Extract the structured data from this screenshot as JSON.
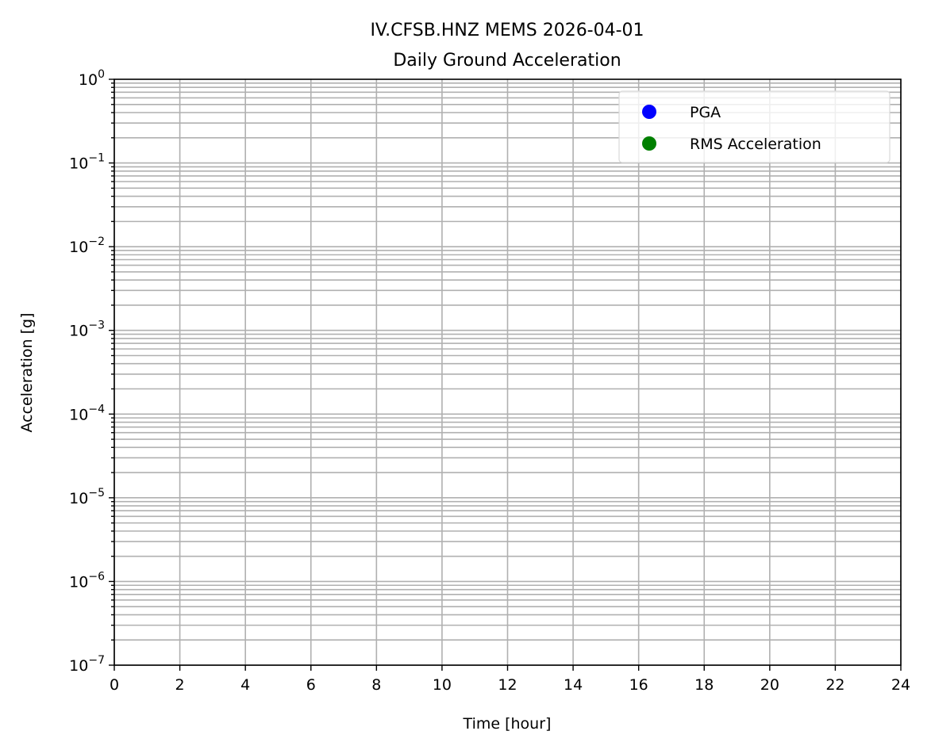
{
  "chart_data": {
    "type": "scatter",
    "title": "IV.CFSB.HNZ MEMS 2026-04-01",
    "subtitle": "Daily Ground Acceleration",
    "xlabel": "Time [hour]",
    "ylabel": "Acceleration [g]",
    "xlim": [
      0,
      24
    ],
    "ylim": [
      1e-07,
      1
    ],
    "yscale": "log",
    "grid": "major and minor",
    "x_ticks": [
      "0",
      "2",
      "4",
      "6",
      "8",
      "10",
      "12",
      "14",
      "16",
      "18",
      "20",
      "22",
      "24"
    ],
    "y_ticks": [
      {
        "base": "10",
        "exp": "0"
      },
      {
        "base": "10",
        "exp": "−1"
      },
      {
        "base": "10",
        "exp": "−2"
      },
      {
        "base": "10",
        "exp": "−3"
      },
      {
        "base": "10",
        "exp": "−4"
      },
      {
        "base": "10",
        "exp": "−5"
      },
      {
        "base": "10",
        "exp": "−6"
      },
      {
        "base": "10",
        "exp": "−7"
      }
    ],
    "legend_position": "top-right",
    "series": [
      {
        "name": "PGA",
        "color": "#0000ff",
        "x": [],
        "y": []
      },
      {
        "name": "RMS Acceleration",
        "color": "#008000",
        "x": [],
        "y": []
      }
    ]
  }
}
